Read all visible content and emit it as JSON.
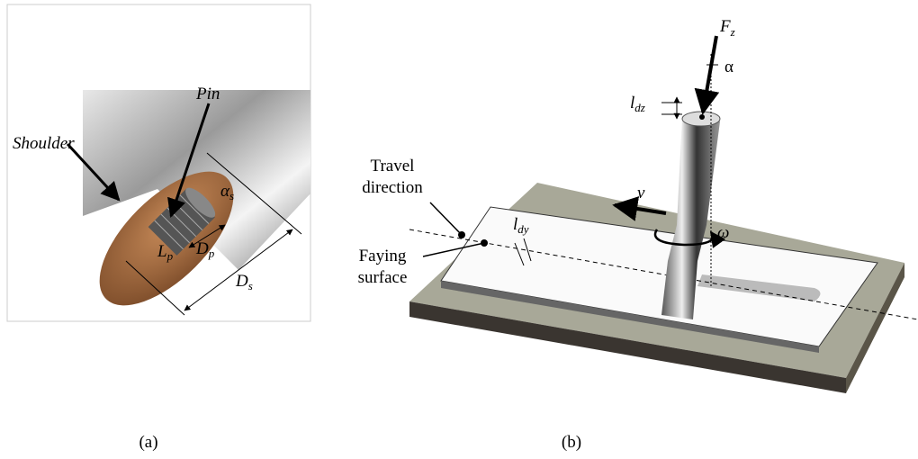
{
  "panel_a": {
    "shoulder": "Shoulder",
    "pin": "Pin",
    "alpha_s": {
      "main": "α",
      "sub": "s"
    },
    "l_p": {
      "main": "L",
      "sub": "p"
    },
    "d_p": {
      "main": "D",
      "sub": "p"
    },
    "d_s": {
      "main": "D",
      "sub": "s"
    },
    "caption": "(a)"
  },
  "panel_b": {
    "f_z": {
      "main": "F",
      "sub": "z"
    },
    "alpha": "α",
    "l_dz": {
      "main": "l",
      "sub": "dz"
    },
    "travel_direction": [
      "Travel",
      "direction"
    ],
    "faying_surface": [
      "Faying",
      "surface"
    ],
    "v": "v",
    "l_dy": {
      "main": "l",
      "sub": "dy"
    },
    "omega": "ω",
    "caption": "(b)"
  }
}
